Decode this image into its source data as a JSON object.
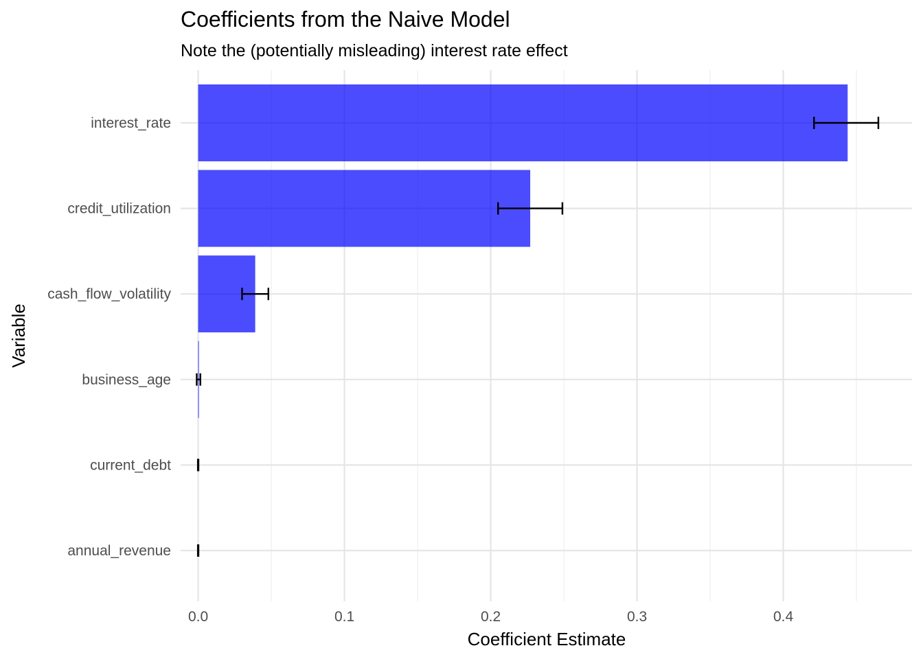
{
  "chart_data": {
    "type": "bar",
    "orientation": "horizontal",
    "title": "Coefficients from the Naive Model",
    "subtitle": "Note the (potentially misleading) interest rate effect",
    "xlabel": "Coefficient Estimate",
    "ylabel": "Variable",
    "xlim": [
      -0.012,
      0.488
    ],
    "x_ticks": [
      "0.0",
      "0.1",
      "0.2",
      "0.3",
      "0.4"
    ],
    "x_tick_values": [
      0.0,
      0.1,
      0.2,
      0.3,
      0.4
    ],
    "grid": true,
    "bar_color": "#0000ff",
    "bar_opacity": 0.7,
    "error_bar_color": "#000000",
    "categories": [
      "interest_rate",
      "credit_utilization",
      "cash_flow_volatility",
      "business_age",
      "current_debt",
      "annual_revenue"
    ],
    "values": [
      0.444,
      0.227,
      0.039,
      0.0005,
      0.0,
      0.0
    ],
    "error_low": [
      0.421,
      0.205,
      0.03,
      -0.001,
      -0.0002,
      -0.0002
    ],
    "error_high": [
      0.465,
      0.249,
      0.048,
      0.0015,
      0.0002,
      0.0002
    ]
  }
}
